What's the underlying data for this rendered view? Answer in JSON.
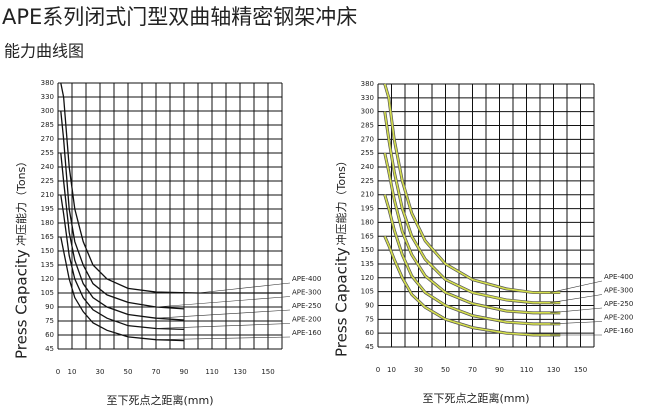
{
  "header": {
    "title": "APE系列闭式门型双曲轴精密钢架冲床",
    "subtitle": "能力曲线图"
  },
  "chart_data": [
    {
      "type": "line",
      "ylabel": "Press Capacity",
      "ylabel_sub": "冲压能力（Tons）",
      "xlabel": "至下死点之距离(mm)",
      "xlim": [
        0,
        160
      ],
      "xticks": [
        0,
        10,
        30,
        50,
        70,
        90,
        110,
        130,
        150
      ],
      "yticks": [
        380,
        330,
        300,
        285,
        270,
        255,
        240,
        225,
        210,
        195,
        180,
        165,
        150,
        135,
        120,
        105,
        90,
        75,
        60,
        45
      ],
      "grid": true,
      "color": "#111111",
      "series": [
        {
          "name": "APE-400",
          "x": [
            2,
            4,
            8,
            12,
            18,
            25,
            35,
            50,
            70,
            100,
            160
          ],
          "values": [
            380,
            330,
            240,
            195,
            160,
            135,
            120,
            110,
            106,
            105,
            105
          ]
        },
        {
          "name": "APE-300",
          "x": [
            2,
            4,
            8,
            12,
            18,
            25,
            35,
            50,
            70,
            90
          ],
          "values": [
            300,
            270,
            195,
            160,
            135,
            115,
            103,
            95,
            90,
            88
          ]
        },
        {
          "name": "APE-250",
          "x": [
            2,
            4,
            8,
            12,
            18,
            25,
            35,
            50,
            70,
            90
          ],
          "values": [
            255,
            225,
            170,
            140,
            115,
            100,
            90,
            82,
            78,
            76
          ]
        },
        {
          "name": "APE-200",
          "x": [
            2,
            4,
            8,
            12,
            18,
            25,
            35,
            50,
            70,
            90
          ],
          "values": [
            210,
            190,
            145,
            120,
            100,
            87,
            78,
            70,
            67,
            66
          ]
        },
        {
          "name": "APE-160",
          "x": [
            2,
            4,
            8,
            12,
            18,
            25,
            35,
            50,
            70,
            90
          ],
          "values": [
            165,
            150,
            120,
            100,
            85,
            73,
            65,
            58,
            55,
            54
          ]
        }
      ]
    },
    {
      "type": "line",
      "ylabel": "Press Capacity",
      "ylabel_sub": "冲压能力（Tons）",
      "xlabel": "至下死点之距离(mm)",
      "xlim": [
        0,
        160
      ],
      "xticks": [
        0,
        10,
        30,
        50,
        70,
        90,
        110,
        130,
        150
      ],
      "yticks": [
        380,
        330,
        300,
        285,
        270,
        255,
        240,
        225,
        210,
        195,
        180,
        165,
        150,
        135,
        120,
        105,
        90,
        75,
        60,
        45
      ],
      "grid": true,
      "color": "#d6e04e",
      "series": [
        {
          "name": "APE-400",
          "x": [
            5,
            8,
            12,
            18,
            25,
            35,
            50,
            70,
            95,
            115,
            135
          ],
          "values": [
            380,
            330,
            270,
            225,
            190,
            160,
            135,
            118,
            108,
            104,
            104
          ]
        },
        {
          "name": "APE-300",
          "x": [
            5,
            8,
            12,
            18,
            25,
            35,
            50,
            70,
            95,
            115,
            135
          ],
          "values": [
            300,
            270,
            235,
            195,
            165,
            140,
            118,
            104,
            96,
            93,
            93
          ]
        },
        {
          "name": "APE-250",
          "x": [
            5,
            8,
            12,
            18,
            25,
            35,
            50,
            70,
            95,
            115,
            135
          ],
          "values": [
            255,
            235,
            205,
            170,
            145,
            122,
            104,
            92,
            84,
            82,
            82
          ]
        },
        {
          "name": "APE-200",
          "x": [
            5,
            8,
            12,
            18,
            25,
            35,
            50,
            70,
            95,
            115,
            135
          ],
          "values": [
            210,
            195,
            172,
            145,
            122,
            104,
            90,
            79,
            72,
            70,
            70
          ]
        },
        {
          "name": "APE-160",
          "x": [
            5,
            8,
            12,
            18,
            25,
            35,
            50,
            70,
            95,
            115,
            135
          ],
          "values": [
            165,
            155,
            140,
            120,
            102,
            88,
            75,
            66,
            60,
            58,
            58
          ]
        }
      ]
    }
  ]
}
